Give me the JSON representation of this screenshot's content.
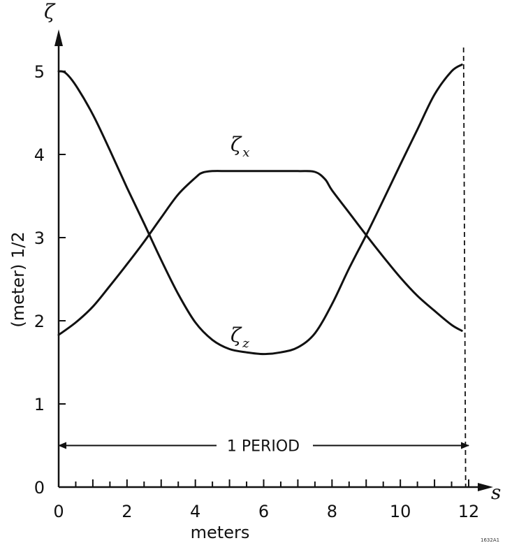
{
  "chart_data": {
    "type": "line",
    "y_axis_symbol": "ζ",
    "ylabel": "(meter) 1/2",
    "x_axis_symbol": "s",
    "xlabel": "meters",
    "xlim": [
      0,
      12
    ],
    "ylim": [
      0,
      5.2
    ],
    "x_ticks_labeled": [
      "0",
      "2",
      "4",
      "6",
      "8",
      "10",
      "12"
    ],
    "y_ticks_labeled": [
      "0",
      "1",
      "2",
      "3",
      "4",
      "5"
    ],
    "grid": false,
    "series": [
      {
        "name": "ζ",
        "subscript": "x",
        "x": [
          0,
          0.5,
          1,
          1.5,
          2,
          2.5,
          3,
          3.5,
          4,
          4.2,
          4.5,
          5,
          6,
          7,
          7.5,
          7.8,
          8,
          8.5,
          9,
          9.5,
          10,
          10.5,
          11,
          11.5,
          11.8
        ],
        "y": [
          1.83,
          1.98,
          2.17,
          2.42,
          2.68,
          2.95,
          3.24,
          3.52,
          3.72,
          3.78,
          3.8,
          3.8,
          3.8,
          3.8,
          3.79,
          3.7,
          3.57,
          3.3,
          3.03,
          2.77,
          2.52,
          2.3,
          2.12,
          1.95,
          1.88
        ]
      },
      {
        "name": "ζ",
        "subscript": "z",
        "x": [
          0,
          0.2,
          0.5,
          1,
          1.5,
          2,
          2.5,
          3,
          3.5,
          4,
          4.5,
          5,
          5.5,
          6,
          6.5,
          7,
          7.5,
          8,
          8.5,
          9,
          9.5,
          10,
          10.5,
          11,
          11.5,
          11.8
        ],
        "y": [
          5.0,
          4.98,
          4.83,
          4.48,
          4.05,
          3.6,
          3.17,
          2.73,
          2.32,
          1.98,
          1.77,
          1.66,
          1.62,
          1.6,
          1.62,
          1.68,
          1.85,
          2.2,
          2.63,
          3.03,
          3.45,
          3.88,
          4.3,
          4.72,
          5.0,
          5.08
        ]
      }
    ],
    "annotations": {
      "period_label": "1 PERIOD",
      "period_range": [
        0,
        12
      ],
      "period_y": 0.5,
      "dashed_line_x": 11.85,
      "figure_id": "1632A1"
    }
  }
}
